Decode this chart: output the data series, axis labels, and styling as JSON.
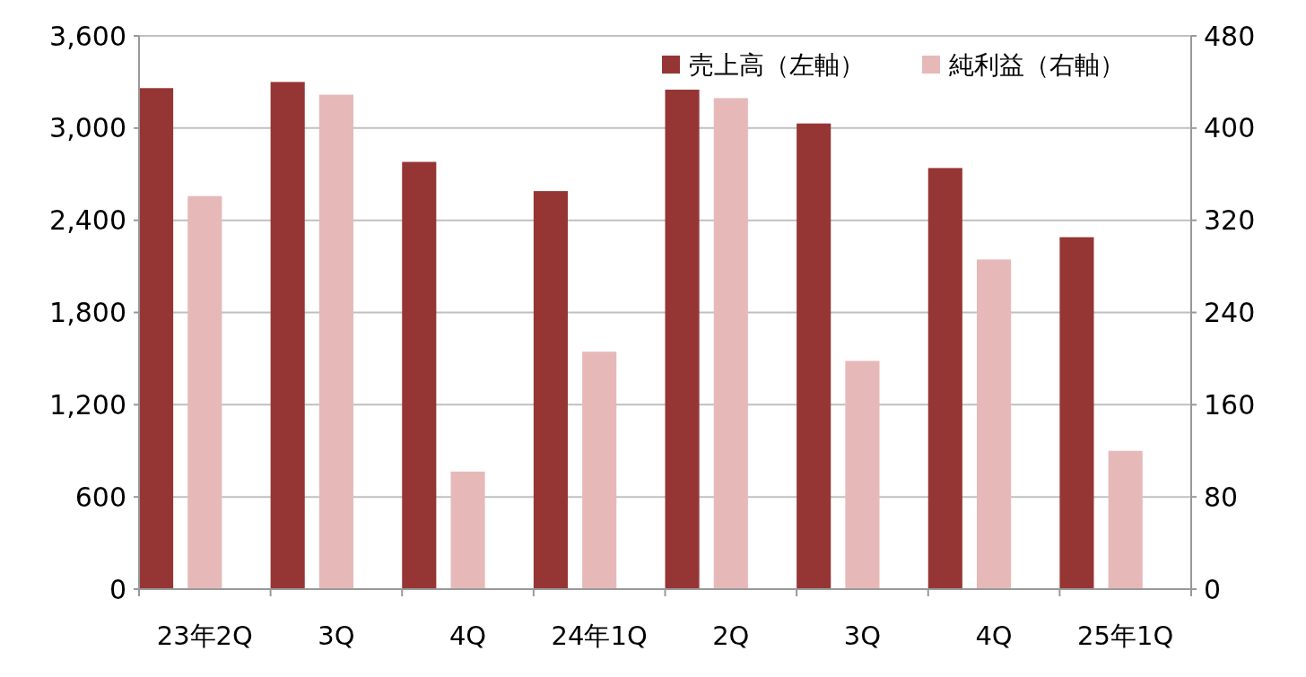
{
  "chart_data": {
    "type": "bar",
    "categories": [
      "23年2Q",
      "3Q",
      "4Q",
      "24年1Q",
      "2Q",
      "3Q",
      "4Q",
      "25年1Q"
    ],
    "series": [
      {
        "name": "売上高（左軸）",
        "color": "#963634",
        "values": [
          3260,
          3300,
          2780,
          2590,
          3250,
          3030,
          2740,
          2290
        ]
      },
      {
        "name": "純利益（右軸）",
        "color": "#e6b9b8",
        "axis": "y2",
        "values": [
          341,
          429,
          102,
          206,
          426,
          198,
          286,
          120
        ]
      }
    ],
    "ylim": [
      0,
      3600
    ],
    "yticks": [
      {
        "value": 0,
        "label": "0"
      },
      {
        "value": 600,
        "label": "600"
      },
      {
        "value": 1200,
        "label": "1,200"
      },
      {
        "value": 1800,
        "label": "1,800"
      },
      {
        "value": 2400,
        "label": "2,400"
      },
      {
        "value": 3000,
        "label": "3,000"
      },
      {
        "value": 3600,
        "label": "3,600"
      }
    ],
    "y2lim": [
      0,
      480
    ],
    "y2ticks": [
      0,
      80,
      160,
      240,
      320,
      400,
      480
    ],
    "grid": "y",
    "legend": "top right"
  }
}
